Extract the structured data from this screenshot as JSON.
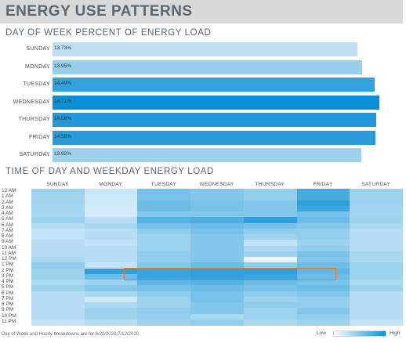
{
  "title": "ENERGY USE PATTERNS",
  "footnote": "Day of Week and Hourly breakdowns are for 6/22/2020-7/12/2020.",
  "legend": {
    "low": "Low",
    "high": "High",
    "low_color": "#ffffff",
    "high_color": "#0a8fd6"
  },
  "chart_data": [
    {
      "type": "bar",
      "title": "DAY OF WEEK PERCENT OF ENERGY LOAD",
      "categories": [
        "SUNDAY",
        "MONDAY",
        "TUESDAY",
        "WEDNESDAY",
        "THURSDAY",
        "FRIDAY",
        "SATURDAY"
      ],
      "values": [
        13.73,
        13.95,
        14.49,
        14.71,
        14.58,
        14.55,
        13.92
      ],
      "value_labels": [
        "13.73%",
        "13.95%",
        "14.49%",
        "14.71%",
        "14.58%",
        "14.55%",
        "13.92%"
      ],
      "xlim": [
        0,
        15.0
      ],
      "color_scale": [
        "#bfe0f2",
        "#0a8fd6"
      ]
    },
    {
      "type": "heatmap",
      "title": "TIME OF DAY AND WEEKDAY ENERGY LOAD",
      "columns": [
        "SUNDAY",
        "MONDAY",
        "TUESDAY",
        "WEDNESDAY",
        "THURSDAY",
        "FRIDAY",
        "SATURDAY"
      ],
      "rows": [
        "12 AM",
        "1 AM",
        "2 AM",
        "3 AM",
        "4 AM",
        "5 AM",
        "6 AM",
        "7 AM",
        "8 AM",
        "9 AM",
        "10 AM",
        "11 AM",
        "12 PM",
        "1 PM",
        "2 PM",
        "3 PM",
        "4 PM",
        "5 PM",
        "6 PM",
        "7 PM",
        "8 PM",
        "9 PM",
        "10 PM",
        "11 PM"
      ],
      "values": [
        [
          0.4,
          0.22,
          0.55,
          0.5,
          0.45,
          0.75,
          0.4
        ],
        [
          0.38,
          0.2,
          0.55,
          0.5,
          0.45,
          0.75,
          0.4
        ],
        [
          0.38,
          0.2,
          0.6,
          0.55,
          0.5,
          0.85,
          0.4
        ],
        [
          0.36,
          0.18,
          0.6,
          0.55,
          0.5,
          0.8,
          0.38
        ],
        [
          0.36,
          0.18,
          0.5,
          0.5,
          0.5,
          0.55,
          0.38
        ],
        [
          0.4,
          0.3,
          0.7,
          0.72,
          0.85,
          0.6,
          0.4
        ],
        [
          0.3,
          0.35,
          0.55,
          0.6,
          0.55,
          0.5,
          0.35
        ],
        [
          0.25,
          0.3,
          0.45,
          0.55,
          0.45,
          0.45,
          0.3
        ],
        [
          0.25,
          0.3,
          0.4,
          0.5,
          0.4,
          0.45,
          0.3
        ],
        [
          0.3,
          0.25,
          0.4,
          0.5,
          0.25,
          0.4,
          0.3
        ],
        [
          0.3,
          0.3,
          0.4,
          0.5,
          0.35,
          0.45,
          0.3
        ],
        [
          0.3,
          0.3,
          0.45,
          0.5,
          0.4,
          0.55,
          0.35
        ],
        [
          0.35,
          0.3,
          0.45,
          0.5,
          0.1,
          0.5,
          0.35
        ],
        [
          0.45,
          0.25,
          0.5,
          0.6,
          0.45,
          0.6,
          0.4
        ],
        [
          0.4,
          0.85,
          0.8,
          0.85,
          0.85,
          0.65,
          0.4
        ],
        [
          0.4,
          0.6,
          0.8,
          0.85,
          0.8,
          0.6,
          0.4
        ],
        [
          0.35,
          0.4,
          0.65,
          0.7,
          0.6,
          0.55,
          0.35
        ],
        [
          0.4,
          0.5,
          0.55,
          0.6,
          0.55,
          0.6,
          0.4
        ],
        [
          0.3,
          0.35,
          0.45,
          0.55,
          0.45,
          0.5,
          0.3
        ],
        [
          0.3,
          0.2,
          0.4,
          0.55,
          0.4,
          0.45,
          0.3
        ],
        [
          0.3,
          0.35,
          0.4,
          0.5,
          0.45,
          0.45,
          0.3
        ],
        [
          0.3,
          0.4,
          0.45,
          0.5,
          0.4,
          0.5,
          0.3
        ],
        [
          0.3,
          0.4,
          0.45,
          0.35,
          0.4,
          0.45,
          0.3
        ],
        [
          0.25,
          0.3,
          0.4,
          0.45,
          0.35,
          0.4,
          0.25
        ]
      ],
      "color_scale": [
        "#ffffff",
        "#0a8fd6"
      ],
      "highlight": {
        "columns": [
          "MONDAY",
          "FRIDAY"
        ],
        "rows": [
          "2 PM",
          "3 PM"
        ],
        "color": "#e07b2d"
      }
    }
  ]
}
